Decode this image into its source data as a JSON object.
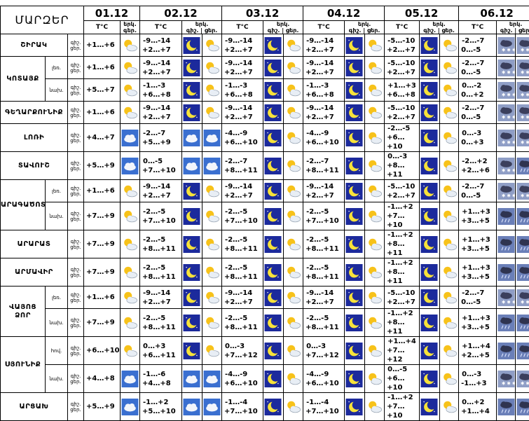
{
  "header": {
    "title": "ՄԱՐԶԵՐ",
    "dates": [
      "01.12",
      "02.12",
      "03.12",
      "04.12",
      "05.12",
      "06.12"
    ],
    "temp_label": "T°C",
    "cond_label": "երկ.",
    "cond_sub1": "գեր.",
    "night_label": "գիշ.",
    "day_label": "ցեր."
  },
  "rows": [
    {
      "region": "ՇԻՐԱԿ",
      "part": "",
      "night": "գիշ.",
      "day": "ցեր.",
      "d1": {
        "t": "+1…+6",
        "i": "partly"
      },
      "days": [
        {
          "n": "-9…-14",
          "d": "+2…+7",
          "ni": "moon",
          "di": "partly"
        },
        {
          "n": "-9…-14",
          "d": "+2…+7",
          "ni": "moon",
          "di": "partly"
        },
        {
          "n": "-9…-14",
          "d": "+2…+7",
          "ni": "moon",
          "di": "partly"
        },
        {
          "n": "-5…-10",
          "d": "+2…+7",
          "ni": "moon",
          "di": "partly"
        },
        {
          "n": "-2…-7",
          "d": "0…-5",
          "ni": "snow",
          "di": "snow"
        }
      ]
    },
    {
      "region": "ԿՈՏԱՅՔ",
      "part": "լեռ.",
      "night": "գիշ.",
      "day": "ցեր.",
      "d1": {
        "t": "+1…+6",
        "i": "partly"
      },
      "days": [
        {
          "n": "-9…-14",
          "d": "+2…+7",
          "ni": "moon",
          "di": "partly"
        },
        {
          "n": "-9…-14",
          "d": "+2…+7",
          "ni": "moon",
          "di": "partly"
        },
        {
          "n": "-9…-14",
          "d": "+2…+7",
          "ni": "moon",
          "di": "partly"
        },
        {
          "n": "-5…-10",
          "d": "+2…+7",
          "ni": "moon",
          "di": "partly"
        },
        {
          "n": "-2…-7",
          "d": "0…-5",
          "ni": "snow",
          "di": "snow"
        }
      ]
    },
    {
      "region": "",
      "part": "նախ.",
      "night": "գիշ.",
      "day": "ցեր.",
      "d1": {
        "t": "+5…+7",
        "i": "partly"
      },
      "days": [
        {
          "n": "-1…-3",
          "d": "+6…+8",
          "ni": "moon",
          "di": "partly"
        },
        {
          "n": "-1…-3",
          "d": "+6…+8",
          "ni": "moon",
          "di": "partly"
        },
        {
          "n": "-1…-3",
          "d": "+6…+8",
          "ni": "moon",
          "di": "partly"
        },
        {
          "n": "+1…+3",
          "d": "+6…+8",
          "ni": "moon",
          "di": "partly"
        },
        {
          "n": "0…-2",
          "d": "0…+2",
          "ni": "snow",
          "di": "snow"
        }
      ]
    },
    {
      "region": "ԳԵՂԱՐՔՈՒՆԻՔ",
      "part": "",
      "night": "գիշ.",
      "day": "ցեր.",
      "d1": {
        "t": "+1…+6",
        "i": "partly"
      },
      "days": [
        {
          "n": "-9…-14",
          "d": "+2…+7",
          "ni": "moon",
          "di": "partly"
        },
        {
          "n": "-9…-14",
          "d": "+2…+7",
          "ni": "moon",
          "di": "partly"
        },
        {
          "n": "-9…-14",
          "d": "+2…+7",
          "ni": "moon",
          "di": "partly"
        },
        {
          "n": "-5…-10",
          "d": "+2…+7",
          "ni": "moon",
          "di": "partly"
        },
        {
          "n": "-2…-7",
          "d": "0…-5",
          "ni": "snow",
          "di": "snow"
        }
      ]
    },
    {
      "region": "ԼՈՌԻ",
      "part": "",
      "night": "գիշ.",
      "day": "ցեր.",
      "d1": {
        "t": "+4…+7",
        "i": "cloud"
      },
      "days": [
        {
          "n": "-2…-7",
          "d": "+5…+9",
          "ni": "cloud",
          "di": "cloud"
        },
        {
          "n": "-4…-9",
          "d": "+6…+10",
          "ni": "moon",
          "di": "partly"
        },
        {
          "n": "-4…-9",
          "d": "+6…+10",
          "ni": "moon",
          "di": "partly"
        },
        {
          "n": "-2…-5",
          "d": "+6…+10",
          "ni": "moon",
          "di": "partly"
        },
        {
          "n": "0…-3",
          "d": "0…+3",
          "ni": "snow",
          "di": "snow"
        }
      ]
    },
    {
      "region": "ՏԱՎՈՒՇ",
      "part": "",
      "night": "գիշ.",
      "day": "ցեր.",
      "d1": {
        "t": "+5…+9",
        "i": "cloud"
      },
      "days": [
        {
          "n": "0…-5",
          "d": "+7…+10",
          "ni": "cloud",
          "di": "cloud"
        },
        {
          "n": "-2…-7",
          "d": "+8…+11",
          "ni": "moon",
          "di": "partly"
        },
        {
          "n": "-2…-7",
          "d": "+8…+11",
          "ni": "moon",
          "di": "partly"
        },
        {
          "n": "0…-3",
          "d": "+8…+11",
          "ni": "moon",
          "di": "partly"
        },
        {
          "n": "-2…+2",
          "d": "+2…+6",
          "ni": "snow",
          "di": "rain"
        }
      ]
    },
    {
      "region": "ԱՐԱԳԱԾՈՏՆ",
      "part": "լեռ.",
      "night": "գիշ.",
      "day": "ցեր.",
      "d1": {
        "t": "+1…+6",
        "i": "partly"
      },
      "days": [
        {
          "n": "-9…-14",
          "d": "+2…+7",
          "ni": "moon",
          "di": "partly"
        },
        {
          "n": "-9…-14",
          "d": "+2…+7",
          "ni": "moon",
          "di": "partly"
        },
        {
          "n": "-9…-14",
          "d": "+2…+7",
          "ni": "moon",
          "di": "partly"
        },
        {
          "n": "-5…-10",
          "d": "+2…+7",
          "ni": "moon",
          "di": "partly"
        },
        {
          "n": "-2…-7",
          "d": "0…-5",
          "ni": "snow",
          "di": "snow"
        }
      ]
    },
    {
      "region": "",
      "part": "նախ.",
      "night": "գիշ.",
      "day": "ցեր.",
      "d1": {
        "t": "+7…+9",
        "i": "partly"
      },
      "days": [
        {
          "n": "-2…-5",
          "d": "+7…+10",
          "ni": "moon",
          "di": "partly"
        },
        {
          "n": "-2…-5",
          "d": "+7…+10",
          "ni": "moon",
          "di": "partly"
        },
        {
          "n": "-2…-5",
          "d": "+7…+10",
          "ni": "moon",
          "di": "partly"
        },
        {
          "n": "-1…+2",
          "d": "+7…+10",
          "ni": "moon",
          "di": "partly"
        },
        {
          "n": "+1…+3",
          "d": "+3…+5",
          "ni": "rain",
          "di": "rain"
        }
      ]
    },
    {
      "region": "ԱՐԱՐԱՏ",
      "part": "",
      "night": "գիշ.",
      "day": "ցեր.",
      "d1": {
        "t": "+7…+9",
        "i": "partly"
      },
      "days": [
        {
          "n": "-2…-5",
          "d": "+8…+11",
          "ni": "moon",
          "di": "partly"
        },
        {
          "n": "-2…-5",
          "d": "+8…+11",
          "ni": "moon",
          "di": "partly"
        },
        {
          "n": "-2…-5",
          "d": "+8…+11",
          "ni": "moon",
          "di": "partly"
        },
        {
          "n": "-1…+2",
          "d": "+8…+11",
          "ni": "moon",
          "di": "partly"
        },
        {
          "n": "+1…+3",
          "d": "+3…+5",
          "ni": "rain",
          "di": "rain"
        }
      ]
    },
    {
      "region": "ԱՐՄԱՎԻՐ",
      "part": "",
      "night": "գիշ.",
      "day": "ցեր.",
      "d1": {
        "t": "+7…+9",
        "i": "partly"
      },
      "days": [
        {
          "n": "-2…-5",
          "d": "+8…+11",
          "ni": "moon",
          "di": "partly"
        },
        {
          "n": "-2…-5",
          "d": "+8…+11",
          "ni": "moon",
          "di": "partly"
        },
        {
          "n": "-2…-5",
          "d": "+8…+11",
          "ni": "moon",
          "di": "partly"
        },
        {
          "n": "-1…+2",
          "d": "+8…+11",
          "ni": "moon",
          "di": "partly"
        },
        {
          "n": "+1…+3",
          "d": "+3…+5",
          "ni": "rain",
          "di": "rain"
        }
      ]
    },
    {
      "region": "ՎԱՅՈՑ ՁՈՐ",
      "part": "լեռ.",
      "night": "գիշ.",
      "day": "ցեր.",
      "d1": {
        "t": "+1…+6",
        "i": "partly"
      },
      "days": [
        {
          "n": "-9…-14",
          "d": "+2…+7",
          "ni": "moon",
          "di": "partly"
        },
        {
          "n": "-9…-14",
          "d": "+2…+7",
          "ni": "moon",
          "di": "partly"
        },
        {
          "n": "-9…-14",
          "d": "+2…+7",
          "ni": "moon",
          "di": "partly"
        },
        {
          "n": "-5…-10",
          "d": "+2…+7",
          "ni": "moon",
          "di": "partly"
        },
        {
          "n": "-2…-7",
          "d": "0…-5",
          "ni": "snow",
          "di": "snow"
        }
      ]
    },
    {
      "region": "",
      "part": "նախ.",
      "night": "գիշ.",
      "day": "ցեր.",
      "d1": {
        "t": "+7…+9",
        "i": "partly"
      },
      "days": [
        {
          "n": "-2…-5",
          "d": "+8…+11",
          "ni": "moon",
          "di": "partly"
        },
        {
          "n": "-2…-5",
          "d": "+8…+11",
          "ni": "moon",
          "di": "partly"
        },
        {
          "n": "-2…-5",
          "d": "+8…+11",
          "ni": "moon",
          "di": "partly"
        },
        {
          "n": "-1…+2",
          "d": "+8…+11",
          "ni": "moon",
          "di": "partly"
        },
        {
          "n": "+1…+3",
          "d": "+3…+5",
          "ni": "rain",
          "di": "rain"
        }
      ]
    },
    {
      "region": "ՍՅՈՒՆԻՔ",
      "part": "հով.",
      "night": "գիշ.",
      "day": "ցեր.",
      "d1": {
        "t": "+6…+10",
        "i": "partly"
      },
      "days": [
        {
          "n": "0…+3",
          "d": "+6…+11",
          "ni": "moon",
          "di": "partly"
        },
        {
          "n": "0…-3",
          "d": "+7…+12",
          "ni": "moon",
          "di": "partly"
        },
        {
          "n": "0…-3",
          "d": "+7…+12",
          "ni": "moon",
          "di": "partly"
        },
        {
          "n": "+1…+4",
          "d": "+7…+12",
          "ni": "moon",
          "di": "partly"
        },
        {
          "n": "+1…+4",
          "d": "+2…+5",
          "ni": "rain",
          "di": "rain"
        }
      ]
    },
    {
      "region": "",
      "part": "նախ.",
      "night": "գիշ.",
      "day": "ցեր.",
      "d1": {
        "t": "+4…+8",
        "i": "cloud"
      },
      "days": [
        {
          "n": "-1…-6",
          "d": "+4…+8",
          "ni": "cloud",
          "di": "cloud"
        },
        {
          "n": "-4…-9",
          "d": "+6…+10",
          "ni": "moon",
          "di": "partly"
        },
        {
          "n": "-4…-9",
          "d": "+6…+10",
          "ni": "moon",
          "di": "partly"
        },
        {
          "n": "0…-5",
          "d": "+6…+10",
          "ni": "moon",
          "di": "partly"
        },
        {
          "n": "0…-3",
          "d": "-1…+3",
          "ni": "snow",
          "di": "snow"
        }
      ]
    },
    {
      "region": "ԱՐՑԱԽ",
      "part": "",
      "night": "գիշ.",
      "day": "ցեր.",
      "d1": {
        "t": "+5…+9",
        "i": "cloud"
      },
      "days": [
        {
          "n": "-1…+2",
          "d": "+5…+10",
          "ni": "cloud",
          "di": "cloud"
        },
        {
          "n": "-1…-4",
          "d": "+7…+10",
          "ni": "moon",
          "di": "partly"
        },
        {
          "n": "-1…-4",
          "d": "+7…+10",
          "ni": "moon",
          "di": "partly"
        },
        {
          "n": "-1…+2",
          "d": "+7…+10",
          "ni": "moon",
          "di": "partly"
        },
        {
          "n": "0…+2",
          "d": "+1…+4",
          "ni": "rain",
          "di": "rain"
        }
      ]
    }
  ]
}
